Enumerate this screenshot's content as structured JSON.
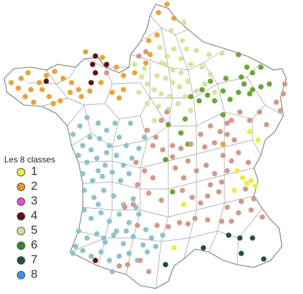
{
  "legend": {
    "title": "Les 8 classes",
    "items": [
      {
        "label": "1",
        "color": "#f2ee3a"
      },
      {
        "label": "2",
        "color": "#e8962a"
      },
      {
        "label": "3",
        "color": "#d94fd9"
      },
      {
        "label": "4",
        "color": "#5c1010"
      },
      {
        "label": "5",
        "color": "#d2e49a"
      },
      {
        "label": "6",
        "color": "#2f8a1f"
      },
      {
        "label": "7",
        "color": "#234f3f"
      },
      {
        "label": "8",
        "color": "#3f8fe8"
      }
    ]
  },
  "map": {
    "colors": {
      "class1": "#eeea4a",
      "class2": "#e9a23a",
      "class4": "#5c1212",
      "class5": "#d3e59e",
      "class6": "#6aa532",
      "class7": "#234f3f",
      "teal": "#8dc3c9",
      "salmon": "#d3988c",
      "lines": "#8c8c8c"
    }
  }
}
